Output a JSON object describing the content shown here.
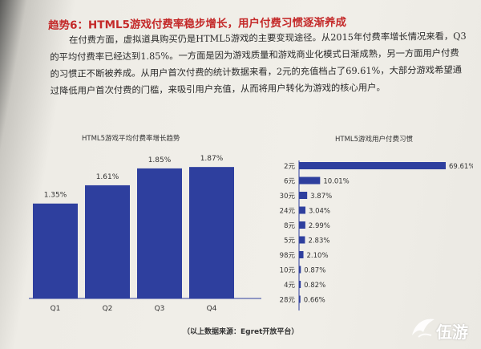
{
  "article": {
    "heading": "趋势6：HTML5游戏付费率稳步增长，用户付费习惯逐渐养成",
    "body": "在付费方面，虚拟道具购买仍是HTML5游戏的主要变现途径。从2015年付费率增长情况来看，Q3的平均付费率已经达到1.85%。一方面是因为游戏质量和游戏商业化模式日渐成熟，另一方面用户付费的习惯正不断被养成。从用户首次付费的统计数据来看，2元的充值档占了69.61%，大部分游戏希望通过降低用户首次付费的门槛，来吸引用户充值，从而将用户转化为游戏的核心用户。"
  },
  "chart_data": [
    {
      "type": "bar",
      "title": "HTML5游戏平均付费率增长趋势",
      "categories": [
        "Q1",
        "Q2",
        "Q3",
        "Q4"
      ],
      "values": [
        1.35,
        1.61,
        1.85,
        1.87
      ],
      "value_labels": [
        "1.35%",
        "1.61%",
        "1.85%",
        "1.87%"
      ],
      "ylim": [
        0,
        2.1
      ],
      "grid": false,
      "color": "#2e3f9e"
    },
    {
      "type": "bar",
      "orientation": "horizontal",
      "title": "HTML5游戏用户付费习惯",
      "categories": [
        "2元",
        "6元",
        "30元",
        "24元",
        "8元",
        "5元",
        "98元",
        "10元",
        "4元",
        "28元"
      ],
      "values": [
        69.61,
        10.01,
        3.87,
        3.04,
        2.99,
        2.83,
        2.1,
        0.87,
        0.82,
        0.66
      ],
      "value_labels": [
        "69.61%",
        "10.01%",
        "3.87%",
        "3.04%",
        "2.99%",
        "2.83%",
        "2.10%",
        "0.87%",
        "0.82%",
        "0.66%"
      ],
      "xlim": [
        0,
        69.61
      ],
      "grid": false,
      "color": "#2e3f9e"
    }
  ],
  "footer": {
    "source": "（以上数据来源：Egret开放平台）",
    "watermark": "伍游"
  }
}
